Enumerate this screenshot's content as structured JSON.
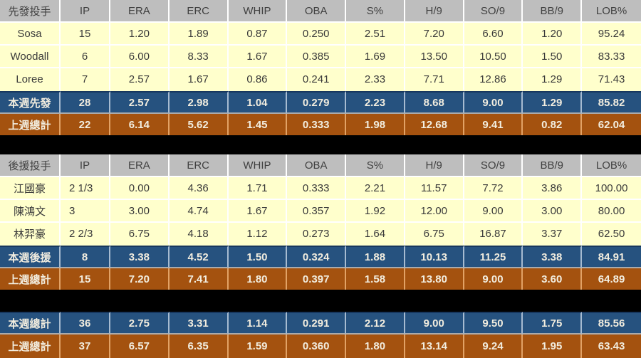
{
  "columns": [
    "IP",
    "ERA",
    "ERC",
    "WHIP",
    "OBA",
    "S%",
    "H/9",
    "SO/9",
    "BB/9",
    "LOB%"
  ],
  "colors": {
    "header_bg": "#bebebe",
    "player_row_bg": "#ffffcc",
    "week_row_bg": "#26527f",
    "prev_week_row_bg": "#a4520f",
    "summary_text": "#f2eddf",
    "divider_band": "#000000"
  },
  "tables": [
    {
      "header_label": "先發投手",
      "players": [
        {
          "label": "Sosa",
          "values": [
            "15",
            "1.20",
            "1.89",
            "0.87",
            "0.250",
            "2.51",
            "7.20",
            "6.60",
            "1.20",
            "95.24"
          ]
        },
        {
          "label": "Woodall",
          "values": [
            "6",
            "6.00",
            "8.33",
            "1.67",
            "0.385",
            "1.69",
            "13.50",
            "10.50",
            "1.50",
            "83.33"
          ]
        },
        {
          "label": "Loree",
          "values": [
            "7",
            "2.57",
            "1.67",
            "0.86",
            "0.241",
            "2.33",
            "7.71",
            "12.86",
            "1.29",
            "71.43"
          ]
        }
      ],
      "week_row": {
        "label": "本週先發",
        "values": [
          "28",
          "2.57",
          "2.98",
          "1.04",
          "0.279",
          "2.23",
          "8.68",
          "9.00",
          "1.29",
          "85.82"
        ]
      },
      "last_row": {
        "label": "上週總計",
        "values": [
          "22",
          "6.14",
          "5.62",
          "1.45",
          "0.333",
          "1.98",
          "12.68",
          "9.41",
          "0.82",
          "62.04"
        ]
      }
    },
    {
      "header_label": "後援投手",
      "ip_left": true,
      "players": [
        {
          "label": "江國豪",
          "values": [
            "2 1/3",
            "0.00",
            "4.36",
            "1.71",
            "0.333",
            "2.21",
            "11.57",
            "7.72",
            "3.86",
            "100.00"
          ]
        },
        {
          "label": "陳鴻文",
          "values": [
            "3",
            "3.00",
            "4.74",
            "1.67",
            "0.357",
            "1.92",
            "12.00",
            "9.00",
            "3.00",
            "80.00"
          ]
        },
        {
          "label": "林羿豪",
          "values": [
            "2 2/3",
            "6.75",
            "4.18",
            "1.12",
            "0.273",
            "1.64",
            "6.75",
            "16.87",
            "3.37",
            "62.50"
          ]
        }
      ],
      "week_row": {
        "label": "本週後援",
        "values": [
          "8",
          "3.38",
          "4.52",
          "1.50",
          "0.324",
          "1.88",
          "10.13",
          "11.25",
          "3.38",
          "84.91"
        ]
      },
      "last_row": {
        "label": "上週總計",
        "values": [
          "15",
          "7.20",
          "7.41",
          "1.80",
          "0.397",
          "1.58",
          "13.80",
          "9.00",
          "3.60",
          "64.89"
        ]
      }
    },
    {
      "week_row": {
        "label": "本週總計",
        "values": [
          "36",
          "2.75",
          "3.31",
          "1.14",
          "0.291",
          "2.12",
          "9.00",
          "9.50",
          "1.75",
          "85.56"
        ]
      },
      "last_row": {
        "label": "上週總計",
        "values": [
          "37",
          "6.57",
          "6.35",
          "1.59",
          "0.360",
          "1.80",
          "13.14",
          "9.24",
          "1.95",
          "63.43"
        ]
      }
    }
  ]
}
